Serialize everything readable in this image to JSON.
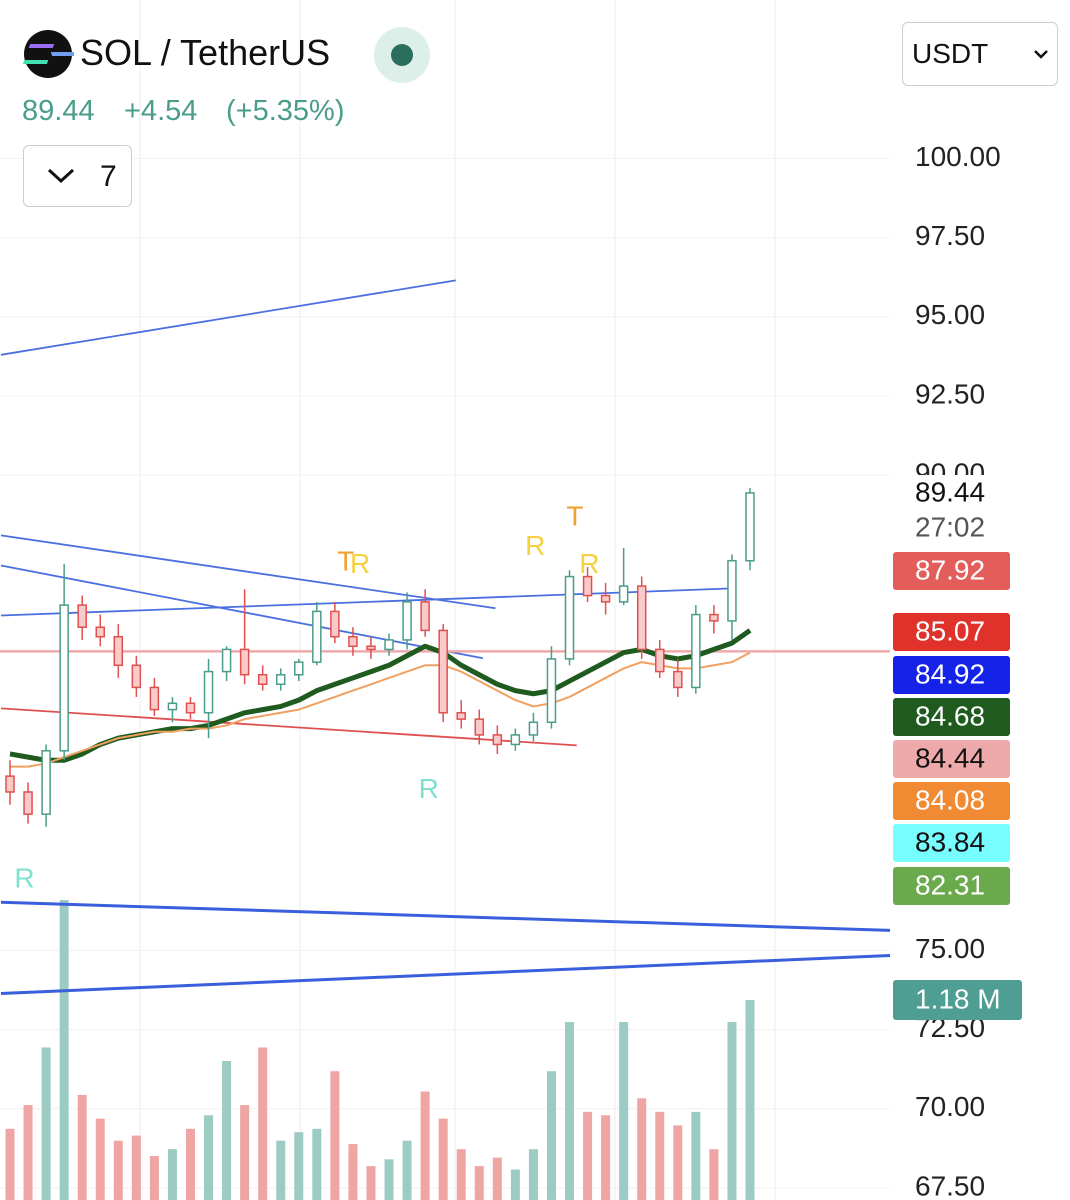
{
  "header": {
    "symbol": "SOL / TetherUS",
    "last": "89.44",
    "change": "+4.54",
    "change_pct": "(+5.35%)",
    "interval": "7",
    "quote": "USDT"
  },
  "chart_data": {
    "type": "candlestick",
    "ylim": [
      67.12,
      105.0
    ],
    "yticks": [
      {
        "value": 67.5,
        "label": "67.50"
      },
      {
        "value": 70,
        "label": "70.00"
      },
      {
        "value": 72.5,
        "label": "72.50"
      },
      {
        "value": 75,
        "label": "75.00"
      },
      {
        "value": 90,
        "label": "90.00"
      },
      {
        "value": 92.5,
        "label": "92.50"
      },
      {
        "value": 95,
        "label": "95.00"
      },
      {
        "value": 97.5,
        "label": "97.50"
      },
      {
        "value": 100,
        "label": "100.00"
      }
    ],
    "grid": true,
    "up_color": "#4a9d8a",
    "down_color": "#e0504f",
    "open": [
      80.5,
      80.0,
      79.3,
      81.3,
      85.9,
      85.2,
      84.9,
      84.0,
      83.3,
      82.6,
      82.8,
      82.5,
      83.8,
      84.5,
      83.7,
      83.4,
      83.7,
      84.1,
      85.7,
      84.9,
      84.6,
      84.5,
      84.8,
      86.0,
      85.1,
      82.5,
      82.3,
      81.8,
      81.5,
      81.8,
      82.2,
      84.2,
      86.8,
      86.2,
      86.0,
      86.5,
      84.5,
      83.8,
      83.3,
      85.6,
      85.4,
      87.3
    ],
    "high": [
      81.0,
      80.3,
      81.5,
      87.2,
      86.2,
      85.6,
      85.3,
      84.3,
      83.6,
      83.0,
      83.0,
      84.2,
      84.6,
      86.4,
      84.0,
      83.9,
      84.2,
      86.0,
      86.0,
      85.2,
      84.9,
      85.0,
      86.3,
      86.4,
      85.3,
      82.9,
      82.6,
      82.1,
      82.0,
      82.5,
      84.6,
      87.0,
      87.1,
      86.6,
      87.7,
      86.8,
      84.8,
      84.2,
      85.9,
      85.9,
      87.5,
      89.6
    ],
    "low": [
      79.6,
      79.0,
      78.9,
      81.0,
      84.8,
      84.6,
      83.6,
      83.0,
      82.4,
      82.2,
      82.3,
      81.7,
      83.5,
      83.4,
      83.2,
      83.2,
      83.5,
      84.0,
      84.7,
      84.3,
      84.2,
      84.3,
      84.5,
      84.9,
      82.2,
      82.0,
      81.5,
      81.2,
      81.3,
      81.6,
      82.0,
      84.0,
      86.0,
      85.6,
      85.9,
      84.2,
      83.6,
      83.0,
      83.1,
      85.0,
      84.8,
      87.0
    ],
    "close": [
      80.0,
      79.3,
      81.3,
      85.9,
      85.2,
      84.9,
      84.0,
      83.3,
      82.6,
      82.8,
      82.5,
      83.8,
      84.5,
      83.7,
      83.4,
      83.7,
      84.1,
      85.7,
      84.9,
      84.6,
      84.5,
      84.8,
      86.0,
      85.1,
      82.5,
      82.3,
      81.8,
      81.5,
      81.8,
      82.2,
      84.2,
      86.8,
      86.2,
      86.0,
      86.5,
      84.5,
      83.8,
      83.3,
      85.6,
      85.4,
      87.3,
      89.44
    ],
    "volume": [
      420000,
      560000,
      900000,
      1770000,
      620000,
      480000,
      350000,
      380000,
      260000,
      300000,
      420000,
      500000,
      820000,
      560000,
      900000,
      350000,
      400000,
      420000,
      760000,
      330000,
      200000,
      240000,
      350000,
      640000,
      480000,
      300000,
      200000,
      250000,
      180000,
      300000,
      760000,
      1050000,
      520000,
      500000,
      1050000,
      600000,
      520000,
      440000,
      520000,
      300000,
      1050000,
      1180000
    ],
    "series": [
      {
        "color": "#1f5a1f",
        "values": [
          81.2,
          81.1,
          81.0,
          81.0,
          81.2,
          81.5,
          81.7,
          81.8,
          81.9,
          82.0,
          82.0,
          82.1,
          82.3,
          82.5,
          82.6,
          82.7,
          82.9,
          83.2,
          83.4,
          83.6,
          83.8,
          84.0,
          84.3,
          84.6,
          84.4,
          84.0,
          83.7,
          83.4,
          83.2,
          83.1,
          83.2,
          83.5,
          83.8,
          84.1,
          84.4,
          84.5,
          84.3,
          84.2,
          84.3,
          84.5,
          84.7,
          85.1
        ]
      },
      {
        "color": "#f0a060",
        "values": [
          80.8,
          80.8,
          80.9,
          81.1,
          81.3,
          81.5,
          81.7,
          81.8,
          81.9,
          81.9,
          82.0,
          82.0,
          82.1,
          82.3,
          82.4,
          82.5,
          82.6,
          82.8,
          83.0,
          83.2,
          83.4,
          83.6,
          83.8,
          84.0,
          84.0,
          83.8,
          83.5,
          83.2,
          82.9,
          82.7,
          82.8,
          83.0,
          83.3,
          83.6,
          83.9,
          84.1,
          84.0,
          83.9,
          83.9,
          84.0,
          84.1,
          84.4
        ]
      }
    ],
    "trendlines": [
      {
        "color": "#4a6fe0",
        "x": [
          -0.5,
          24.7
        ],
        "y": [
          93.8,
          96.15
        ]
      },
      {
        "color": "#4a6fe0",
        "x": [
          -0.5,
          26.9
        ],
        "y": [
          88.1,
          85.8
        ]
      },
      {
        "color": "#4a6fe0",
        "x": [
          -0.5,
          26.2
        ],
        "y": [
          87.15,
          84.22
        ]
      },
      {
        "color": "#4a6fe0",
        "x": [
          -0.5,
          40.2
        ],
        "y": [
          85.57,
          86.43
        ]
      },
      {
        "color": "#e05050",
        "x": [
          -0.5,
          31.4
        ],
        "y": [
          82.64,
          81.47
        ]
      },
      {
        "color": "#3a5fdc",
        "x": [
          -0.5,
          48.8
        ],
        "y": [
          76.52,
          75.63
        ]
      },
      {
        "color": "#3a5fdc",
        "x": [
          -0.5,
          48.8
        ],
        "y": [
          73.64,
          74.84
        ]
      }
    ],
    "annotations": [
      {
        "text": "R",
        "color": "#7fe0d0",
        "x": 0.8,
        "y": 77.21
      },
      {
        "text": "T",
        "color": "#f0a030",
        "x": 18.6,
        "y": 87.22
      },
      {
        "text": "R",
        "color": "#f5d040",
        "x": 19.4,
        "y": 87.15
      },
      {
        "text": "R",
        "color": "#7fe0d0",
        "x": 23.2,
        "y": 80.05
      },
      {
        "text": "R",
        "color": "#f5d040",
        "x": 29.1,
        "y": 87.72
      },
      {
        "text": "T",
        "color": "#f0a030",
        "x": 31.3,
        "y": 88.64
      },
      {
        "text": "R",
        "color": "#f5d040",
        "x": 32.1,
        "y": 87.15
      }
    ],
    "last_price": 89.44,
    "countdown": "27:02",
    "price_labels": [
      {
        "value": 87.92,
        "color": "#e35d5b",
        "text_color": "#ffffff"
      },
      {
        "value": 85.07,
        "color": "#e0312a",
        "text_color": "#ffffff"
      },
      {
        "value": 84.92,
        "color": "#1523e8",
        "text_color": "#ffffff"
      },
      {
        "value": 84.68,
        "color": "#1f5a1f",
        "text_color": "#ffffff"
      },
      {
        "value": 84.44,
        "color": "#eeaaaa",
        "text_color": "#111111"
      },
      {
        "value": 84.08,
        "color": "#f08a33",
        "text_color": "#ffffff"
      },
      {
        "value": 83.84,
        "color": "#77ffff",
        "text_color": "#111111"
      },
      {
        "value": 82.31,
        "color": "#6aaa4c",
        "text_color": "#ffffff"
      }
    ],
    "volume_label": {
      "value": 1180000,
      "label": "1.18 M",
      "color": "#4f9e93"
    }
  }
}
